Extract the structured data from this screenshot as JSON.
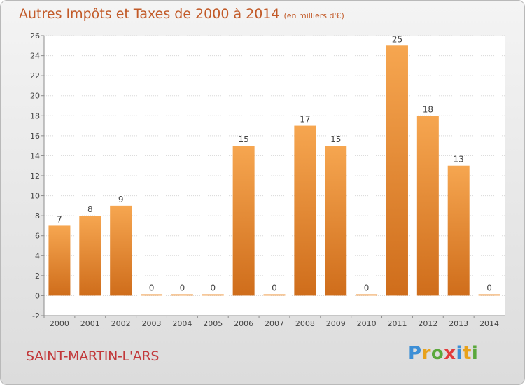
{
  "chart_data": {
    "type": "bar",
    "title": "Autres Impôts et Taxes de 2000 à 2014",
    "subtitle": "(en milliers d'€)",
    "categories": [
      "2000",
      "2001",
      "2002",
      "2003",
      "2004",
      "2005",
      "2006",
      "2007",
      "2008",
      "2009",
      "2010",
      "2011",
      "2012",
      "2013",
      "2014"
    ],
    "values": [
      7,
      8,
      9,
      0,
      0,
      0,
      15,
      0,
      17,
      15,
      0,
      25,
      18,
      13,
      0
    ],
    "ylim": [
      -2,
      26
    ],
    "yticks": [
      -2,
      0,
      2,
      4,
      6,
      8,
      10,
      12,
      14,
      16,
      18,
      20,
      22,
      24,
      26
    ],
    "grid": true,
    "bar_color": "#f08a2c"
  },
  "footer": {
    "location": "SAINT-MARTIN-L'ARS",
    "brand_letters": [
      "P",
      "r",
      "o",
      "x",
      "i",
      "t",
      "i"
    ],
    "brand_colors": [
      "#3d8fd6",
      "#e8a21c",
      "#5aa83c",
      "#e23b3b",
      "#3d8fd6",
      "#e8a21c",
      "#5aa83c"
    ]
  }
}
